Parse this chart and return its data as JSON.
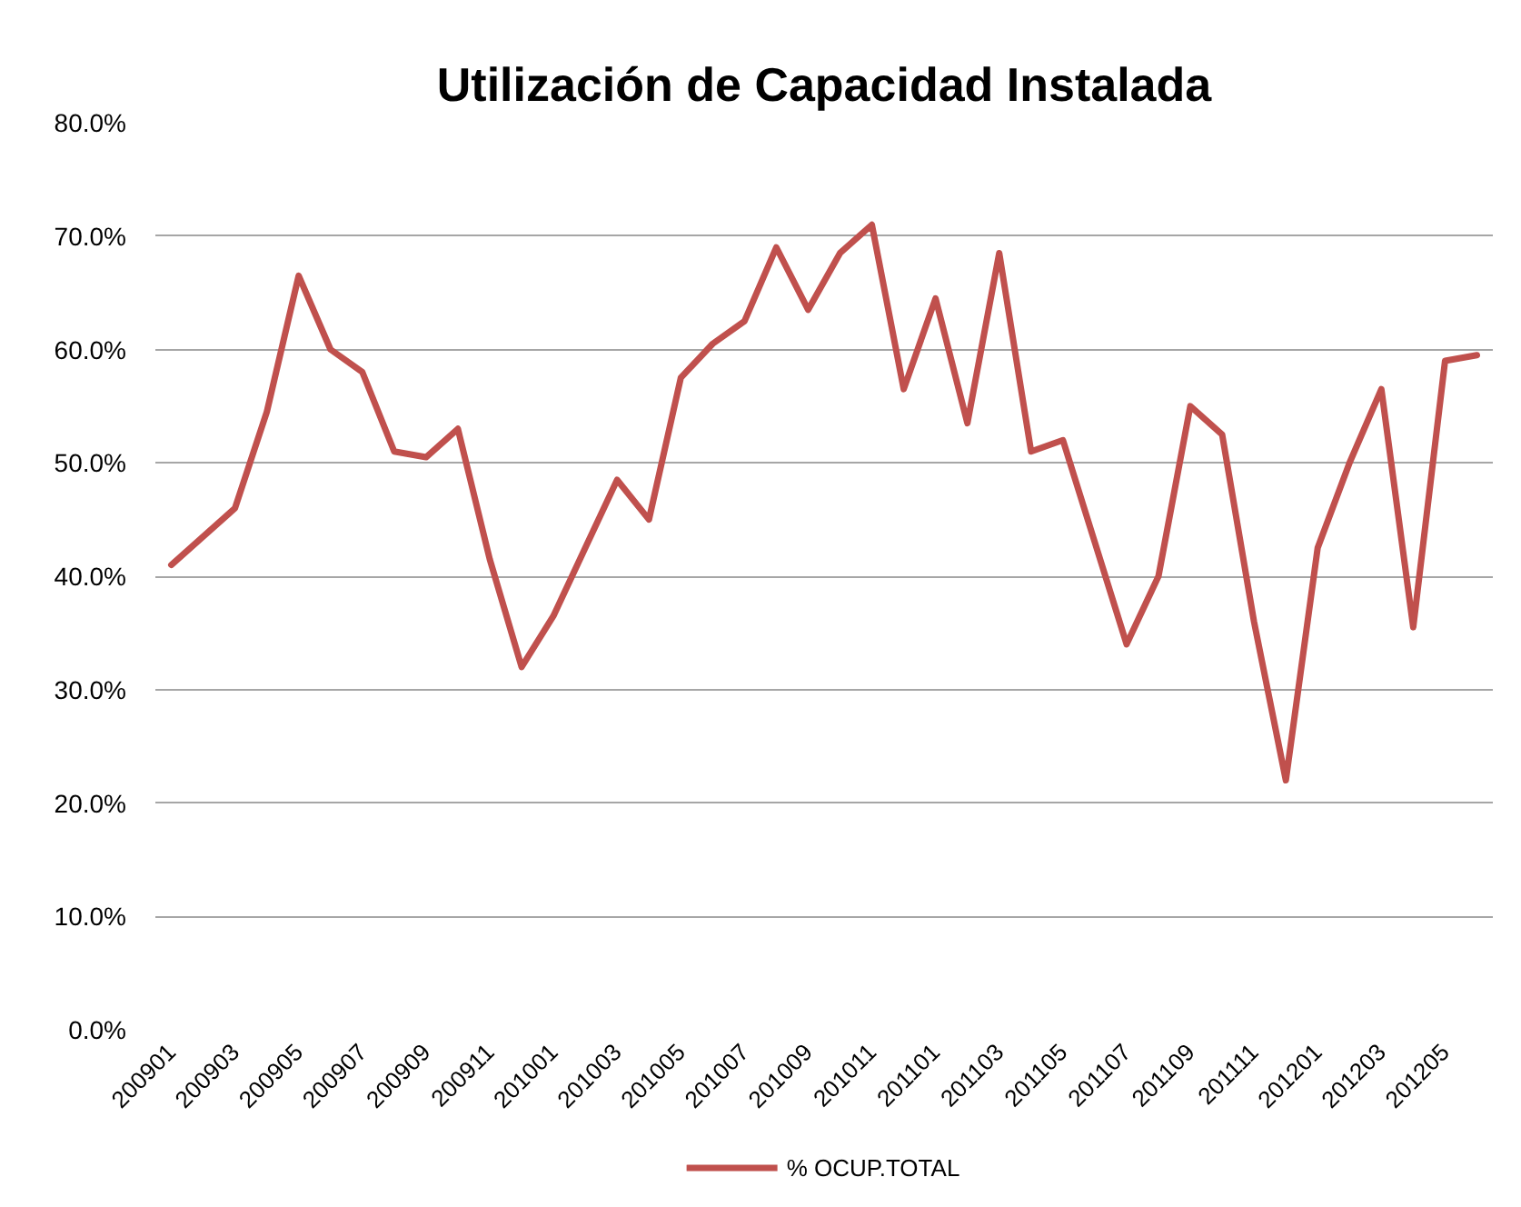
{
  "chart_data": {
    "type": "line",
    "title": "Utilización de Capacidad Instalada",
    "categories": [
      "200901",
      null,
      "200903",
      null,
      "200905",
      null,
      "200907",
      null,
      "200909",
      null,
      "200911",
      null,
      "201001",
      null,
      "201003",
      null,
      "201005",
      null,
      "201007",
      null,
      "201009",
      null,
      "201011",
      null,
      "201101",
      null,
      "201103",
      null,
      "201105",
      null,
      "201107",
      null,
      "201109",
      null,
      "201111",
      null,
      "201201",
      null,
      "201203",
      null,
      "201205",
      null
    ],
    "series": [
      {
        "name": "% OCUP.TOTAL",
        "color": "#c0504d",
        "values": [
          41,
          43.5,
          46,
          54.5,
          66.5,
          60,
          58,
          51,
          50.5,
          53,
          41.5,
          32,
          36.5,
          42.5,
          48.5,
          45,
          57.5,
          60.5,
          62.5,
          69,
          63.5,
          68.5,
          71,
          56.5,
          64.5,
          53.5,
          68.5,
          51,
          52,
          43,
          34,
          40,
          55,
          52.5,
          36,
          22,
          42.5,
          50,
          56.5,
          35.5,
          59,
          59.5
        ]
      }
    ],
    "ylim": [
      0,
      80
    ],
    "yticks": [
      {
        "value": 0,
        "label": "0.0%"
      },
      {
        "value": 10,
        "label": "10.0%"
      },
      {
        "value": 20,
        "label": "20.0%"
      },
      {
        "value": 30,
        "label": "30.0%"
      },
      {
        "value": 40,
        "label": "40.0%"
      },
      {
        "value": 50,
        "label": "50.0%"
      },
      {
        "value": 60,
        "label": "60.0%"
      },
      {
        "value": 70,
        "label": "70.0%"
      },
      {
        "value": 80,
        "label": "80.0%"
      }
    ],
    "grid": "y",
    "legend": "bottom",
    "line_style": "solid"
  }
}
